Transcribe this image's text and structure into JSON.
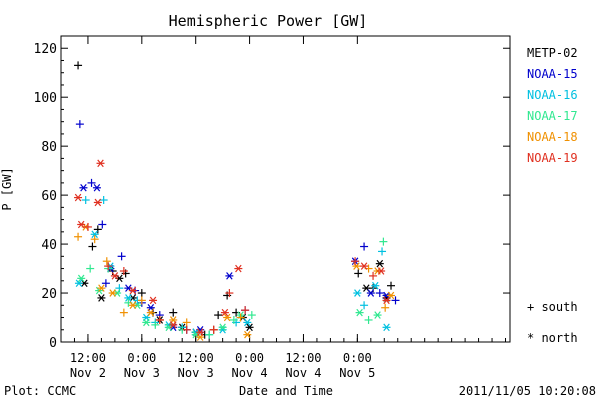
{
  "chart_data": {
    "type": "scatter",
    "title": "Hemispheric Power [GW]",
    "xlabel": "Date and Time",
    "ylabel": "P [GW]",
    "ylim": [
      0,
      125
    ],
    "yticks": [
      0,
      20,
      40,
      60,
      80,
      100,
      120
    ],
    "xlim_hours": [
      6,
      106
    ],
    "xticks": [
      {
        "h": 12,
        "line1": "12:00",
        "line2": "Nov 2"
      },
      {
        "h": 24,
        "line1": "0:00",
        "line2": "Nov 3"
      },
      {
        "h": 36,
        "line1": "12:00",
        "line2": "Nov 3"
      },
      {
        "h": 48,
        "line1": "0:00",
        "line2": "Nov 4"
      },
      {
        "h": 60,
        "line1": "12:00",
        "line2": "Nov 4"
      },
      {
        "h": 72,
        "line1": "0:00",
        "line2": "Nov 5"
      }
    ],
    "legend_position": "right",
    "symbol_legend": {
      "south": "+ south",
      "north": "* north"
    },
    "footer_left": "Plot: CCMC",
    "footer_right": "2011/11/05 10:20:08",
    "series": [
      {
        "name": "METP-02",
        "color": "#000000",
        "points": [
          [
            9.8,
            113,
            "s"
          ],
          [
            11.2,
            24,
            "n"
          ],
          [
            13,
            39,
            "s"
          ],
          [
            14.2,
            46,
            "s"
          ],
          [
            15.0,
            18,
            "n"
          ],
          [
            17.5,
            29,
            "s"
          ],
          [
            19,
            26,
            "n"
          ],
          [
            20.4,
            28,
            "s"
          ],
          [
            22,
            18,
            "n"
          ],
          [
            24,
            20,
            "s"
          ],
          [
            26.5,
            12,
            "s"
          ],
          [
            28,
            9,
            "n"
          ],
          [
            31,
            12,
            "s"
          ],
          [
            33,
            6,
            "n"
          ],
          [
            36,
            4,
            "n"
          ],
          [
            38,
            3,
            "s"
          ],
          [
            41,
            11,
            "s"
          ],
          [
            43,
            19,
            "s"
          ],
          [
            45,
            12,
            "s"
          ],
          [
            46.5,
            10,
            "n"
          ],
          [
            48,
            6,
            "n"
          ],
          [
            72.2,
            28,
            "s"
          ],
          [
            74,
            22,
            "n"
          ],
          [
            75.5,
            22,
            "s"
          ],
          [
            77,
            32,
            "n"
          ],
          [
            78.5,
            18,
            "n"
          ],
          [
            79.5,
            23,
            "s"
          ]
        ]
      },
      {
        "name": "NOAA-15",
        "color": "#0000cc",
        "points": [
          [
            10.2,
            89,
            "s"
          ],
          [
            11.0,
            63,
            "n"
          ],
          [
            12.8,
            65,
            "s"
          ],
          [
            14,
            63,
            "n"
          ],
          [
            15.2,
            48,
            "s"
          ],
          [
            16,
            24,
            "s"
          ],
          [
            17,
            30,
            "n"
          ],
          [
            19.5,
            35,
            "s"
          ],
          [
            21,
            22,
            "n"
          ],
          [
            22.5,
            21,
            "s"
          ],
          [
            24,
            16,
            "s"
          ],
          [
            26,
            14,
            "n"
          ],
          [
            28,
            11,
            "s"
          ],
          [
            31,
            6,
            "n"
          ],
          [
            34,
            5,
            "s"
          ],
          [
            37,
            5,
            "n"
          ],
          [
            40,
            5,
            "s"
          ],
          [
            43.5,
            27,
            "n"
          ],
          [
            47,
            13,
            "s"
          ],
          [
            71.5,
            33,
            "n"
          ],
          [
            73.5,
            39,
            "s"
          ],
          [
            75,
            20,
            "n"
          ],
          [
            77,
            20,
            "s"
          ],
          [
            78.5,
            19,
            "n"
          ],
          [
            80.5,
            17,
            "s"
          ]
        ]
      },
      {
        "name": "NOAA-16",
        "color": "#00c0e0",
        "points": [
          [
            10,
            24,
            "n"
          ],
          [
            11.5,
            58,
            "s"
          ],
          [
            13.5,
            44,
            "n"
          ],
          [
            15.5,
            58,
            "s"
          ],
          [
            17,
            31,
            "n"
          ],
          [
            19,
            22,
            "s"
          ],
          [
            21,
            18,
            "n"
          ],
          [
            23,
            17,
            "s"
          ],
          [
            25,
            10,
            "n"
          ],
          [
            27,
            8,
            "s"
          ],
          [
            30,
            7,
            "n"
          ],
          [
            33,
            6,
            "s"
          ],
          [
            36,
            4,
            "n"
          ],
          [
            39,
            3,
            "s"
          ],
          [
            42,
            5,
            "n"
          ],
          [
            45,
            8,
            "s"
          ],
          [
            47.5,
            8,
            "n"
          ],
          [
            72,
            20,
            "n"
          ],
          [
            73.5,
            15,
            "s"
          ],
          [
            76,
            23,
            "n"
          ],
          [
            77.5,
            37,
            "s"
          ],
          [
            78.5,
            6,
            "n"
          ]
        ]
      },
      {
        "name": "NOAA-17",
        "color": "#30e890",
        "points": [
          [
            10.5,
            26,
            "n"
          ],
          [
            12.5,
            30,
            "s"
          ],
          [
            14.5,
            21,
            "n"
          ],
          [
            16.5,
            30,
            "s"
          ],
          [
            18.5,
            20,
            "n"
          ],
          [
            21,
            16,
            "s"
          ],
          [
            23,
            15,
            "n"
          ],
          [
            25,
            8,
            "n"
          ],
          [
            27,
            7,
            "s"
          ],
          [
            30,
            6,
            "n"
          ],
          [
            33,
            5,
            "s"
          ],
          [
            36,
            3,
            "n"
          ],
          [
            39,
            3,
            "s"
          ],
          [
            42,
            6,
            "n"
          ],
          [
            44.5,
            9,
            "s"
          ],
          [
            46,
            11,
            "n"
          ],
          [
            48.5,
            11,
            "s"
          ],
          [
            72.5,
            12,
            "n"
          ],
          [
            74.5,
            9,
            "s"
          ],
          [
            76.5,
            11,
            "n"
          ],
          [
            77.8,
            41,
            "s"
          ]
        ]
      },
      {
        "name": "NOAA-18",
        "color": "#f09000",
        "points": [
          [
            9.8,
            43,
            "s"
          ],
          [
            11.5,
            47,
            "n"
          ],
          [
            13.5,
            42,
            "s"
          ],
          [
            15,
            22,
            "n"
          ],
          [
            16.2,
            33,
            "s"
          ],
          [
            17.5,
            20,
            "n"
          ],
          [
            20,
            12,
            "s"
          ],
          [
            22,
            15,
            "n"
          ],
          [
            24,
            17,
            "s"
          ],
          [
            26,
            12,
            "n"
          ],
          [
            28,
            9,
            "s"
          ],
          [
            31,
            9,
            "n"
          ],
          [
            34,
            8,
            "s"
          ],
          [
            37,
            2,
            "n"
          ],
          [
            40,
            5,
            "s"
          ],
          [
            43,
            10,
            "n"
          ],
          [
            46,
            10,
            "s"
          ],
          [
            47.5,
            3,
            "n"
          ],
          [
            71.8,
            31,
            "n"
          ],
          [
            74.5,
            30,
            "s"
          ],
          [
            76.5,
            29,
            "n"
          ],
          [
            78.2,
            14,
            "s"
          ],
          [
            79.5,
            19,
            "n"
          ]
        ]
      },
      {
        "name": "NOAA-19",
        "color": "#e03020",
        "points": [
          [
            9.8,
            59,
            "n"
          ],
          [
            10.5,
            48,
            "n"
          ],
          [
            12,
            47,
            "s"
          ],
          [
            14.2,
            57,
            "n"
          ],
          [
            14.8,
            73,
            "n"
          ],
          [
            16.5,
            31,
            "s"
          ],
          [
            18,
            27,
            "n"
          ],
          [
            20,
            29,
            "s"
          ],
          [
            22,
            21,
            "n"
          ],
          [
            26.5,
            17,
            "n"
          ],
          [
            28,
            9,
            "s"
          ],
          [
            31,
            7,
            "n"
          ],
          [
            34,
            5,
            "s"
          ],
          [
            37,
            4,
            "n"
          ],
          [
            40,
            5,
            "s"
          ],
          [
            42.5,
            12,
            "n"
          ],
          [
            43.5,
            20,
            "s"
          ],
          [
            45.5,
            30,
            "n"
          ],
          [
            47,
            13,
            "s"
          ],
          [
            71.5,
            33,
            "s"
          ],
          [
            73.5,
            31,
            "n"
          ],
          [
            75.5,
            27,
            "s"
          ],
          [
            77.3,
            29,
            "n"
          ],
          [
            78.5,
            17,
            "n"
          ]
        ]
      }
    ]
  }
}
